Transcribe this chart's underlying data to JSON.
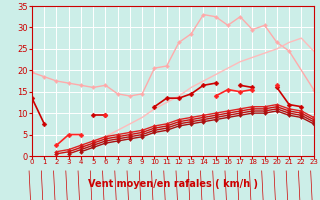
{
  "xlabel": "Vent moyen/en rafales ( km/h )",
  "xlim": [
    0,
    23
  ],
  "ylim": [
    0,
    35
  ],
  "yticks": [
    0,
    5,
    10,
    15,
    20,
    25,
    30,
    35
  ],
  "xticks": [
    0,
    1,
    2,
    3,
    4,
    5,
    6,
    7,
    8,
    9,
    10,
    11,
    12,
    13,
    14,
    15,
    16,
    17,
    18,
    19,
    20,
    21,
    22,
    23
  ],
  "bg_color": "#cceee8",
  "grid_color": "#b0d8d4",
  "lines": [
    {
      "x": [
        0,
        1,
        2,
        3,
        4,
        5,
        6,
        7,
        8,
        9,
        10,
        11,
        12,
        13,
        14,
        15,
        16,
        17,
        18,
        19,
        20,
        21,
        23
      ],
      "y": [
        19.5,
        18.5,
        17.5,
        17.0,
        16.5,
        16.0,
        16.5,
        14.5,
        14.0,
        14.5,
        20.5,
        21.0,
        26.5,
        28.5,
        33.0,
        32.5,
        30.5,
        32.5,
        29.5,
        30.5,
        26.5,
        24.5,
        15.5
      ],
      "color": "#ffaaaa",
      "lw": 1.0,
      "marker": "D",
      "ms": 2.0,
      "zorder": 2
    },
    {
      "x": [
        0,
        1,
        2,
        3,
        4,
        5,
        6,
        7,
        8,
        9,
        10,
        11,
        12,
        13,
        14,
        15,
        16,
        17,
        18,
        19,
        20,
        21,
        22,
        23
      ],
      "y": [
        null,
        null,
        null,
        null,
        null,
        null,
        null,
        null,
        null,
        null,
        null,
        null,
        null,
        null,
        null,
        null,
        null,
        null,
        null,
        null,
        null,
        null,
        null,
        null
      ],
      "color": "#ff8888",
      "lw": 1.0,
      "marker": "D",
      "ms": 2.0,
      "zorder": 2
    },
    {
      "x": [
        0,
        1,
        2,
        3,
        4,
        5,
        6,
        7,
        8,
        9,
        10,
        11,
        12,
        13,
        14,
        15,
        16,
        17,
        18,
        19,
        20,
        21,
        22,
        23
      ],
      "y": [
        null,
        null,
        null,
        1.0,
        2.0,
        3.0,
        4.5,
        6.0,
        7.5,
        9.0,
        11.0,
        12.5,
        14.0,
        16.0,
        17.5,
        19.0,
        20.5,
        22.0,
        23.0,
        24.0,
        25.0,
        26.5,
        27.5,
        24.5
      ],
      "color": "#ffbbbb",
      "lw": 1.0,
      "marker": null,
      "ms": 0,
      "zorder": 2
    },
    {
      "x": [
        0,
        1,
        2,
        3,
        4,
        5,
        6,
        7,
        8,
        9,
        10,
        11,
        12,
        13,
        14,
        15,
        16,
        17,
        18,
        19,
        20,
        21,
        22,
        23
      ],
      "y": [
        13.5,
        7.5,
        null,
        null,
        null,
        9.5,
        9.5,
        null,
        null,
        null,
        11.5,
        13.5,
        13.5,
        14.5,
        16.5,
        17.0,
        null,
        16.5,
        16.0,
        null,
        16.0,
        12.0,
        11.5,
        null
      ],
      "color": "#cc0000",
      "lw": 1.2,
      "marker": "D",
      "ms": 2.5,
      "zorder": 4
    },
    {
      "x": [
        0,
        1,
        2,
        3,
        4,
        5,
        6,
        7,
        8,
        9,
        10,
        11,
        12,
        13,
        14,
        15,
        16,
        17,
        18,
        19,
        20,
        21,
        22,
        23
      ],
      "y": [
        null,
        null,
        2.5,
        5.0,
        5.0,
        null,
        9.5,
        null,
        null,
        null,
        null,
        null,
        null,
        null,
        null,
        14.0,
        15.5,
        15.0,
        15.5,
        null,
        16.5,
        null,
        null,
        null
      ],
      "color": "#ff2222",
      "lw": 1.2,
      "marker": "D",
      "ms": 2.5,
      "zorder": 4
    },
    {
      "x": [
        2,
        3,
        4,
        5,
        6,
        7,
        8,
        9,
        10,
        11,
        12,
        13,
        14,
        15,
        16,
        17,
        18,
        19,
        20,
        21,
        22,
        23
      ],
      "y": [
        1.0,
        1.5,
        2.5,
        3.5,
        4.5,
        5.0,
        5.5,
        6.0,
        7.0,
        7.5,
        8.5,
        9.0,
        9.5,
        10.0,
        10.5,
        11.0,
        11.5,
        11.5,
        12.0,
        11.0,
        10.5,
        9.0
      ],
      "color": "#dd2222",
      "lw": 1.0,
      "marker": "D",
      "ms": 2.0,
      "zorder": 3
    },
    {
      "x": [
        2,
        3,
        4,
        5,
        6,
        7,
        8,
        9,
        10,
        11,
        12,
        13,
        14,
        15,
        16,
        17,
        18,
        19,
        20,
        21,
        22,
        23
      ],
      "y": [
        0.5,
        1.0,
        2.0,
        3.0,
        4.0,
        4.5,
        5.0,
        5.5,
        6.5,
        7.0,
        8.0,
        8.5,
        9.0,
        9.5,
        10.0,
        10.5,
        11.0,
        11.0,
        11.5,
        10.5,
        10.0,
        8.5
      ],
      "color": "#cc1111",
      "lw": 1.0,
      "marker": "D",
      "ms": 2.0,
      "zorder": 3
    },
    {
      "x": [
        3,
        4,
        5,
        6,
        7,
        8,
        9,
        10,
        11,
        12,
        13,
        14,
        15,
        16,
        17,
        18,
        19,
        20,
        21,
        22,
        23
      ],
      "y": [
        0.5,
        1.5,
        2.5,
        3.5,
        4.0,
        4.5,
        5.0,
        6.0,
        6.5,
        7.5,
        8.0,
        8.5,
        9.0,
        9.5,
        10.0,
        10.5,
        10.5,
        11.0,
        10.0,
        9.5,
        8.0
      ],
      "color": "#bb1111",
      "lw": 1.0,
      "marker": "D",
      "ms": 2.0,
      "zorder": 3
    },
    {
      "x": [
        4,
        5,
        6,
        7,
        8,
        9,
        10,
        11,
        12,
        13,
        14,
        15,
        16,
        17,
        18,
        19,
        20,
        21,
        22,
        23
      ],
      "y": [
        1.0,
        2.0,
        3.0,
        3.5,
        4.0,
        4.5,
        5.5,
        6.0,
        7.0,
        7.5,
        8.0,
        8.5,
        9.0,
        9.5,
        10.0,
        10.0,
        10.5,
        9.5,
        9.0,
        7.5
      ],
      "color": "#aa1111",
      "lw": 1.0,
      "marker": "D",
      "ms": 2.0,
      "zorder": 3
    }
  ],
  "arrow_color": "#cc0000",
  "tick_color": "#cc0000",
  "axis_color": "#cc0000",
  "xlabel_color": "#cc0000",
  "xlabel_fontsize": 7.0,
  "xlabel_fontweight": "bold",
  "ytick_fontsize": 6.0,
  "xtick_fontsize": 5.0
}
